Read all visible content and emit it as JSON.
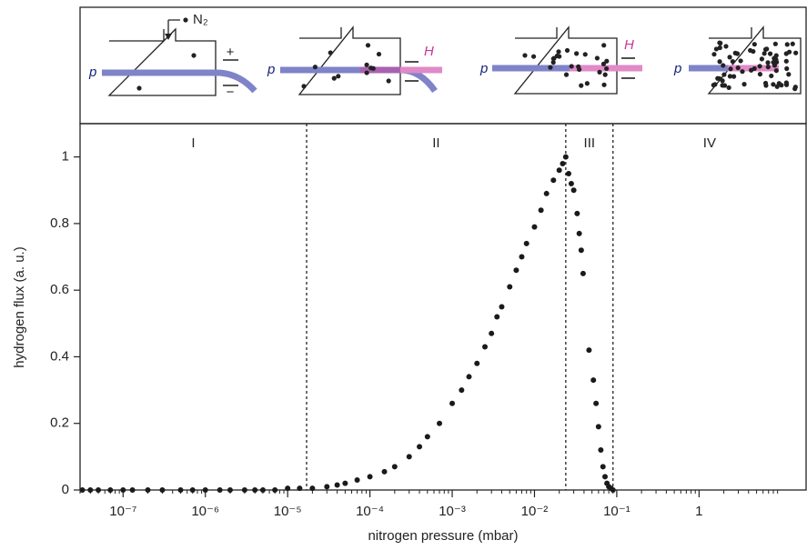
{
  "chart_data": {
    "type": "scatter",
    "xlabel": "nitrogen pressure (mbar)",
    "ylabel": "hydrogen flux (a. u.)",
    "xscale": "log",
    "xlim": [
      3e-08,
      20
    ],
    "ylim": [
      0,
      1.1
    ],
    "xticks": [
      {
        "value": 1e-07,
        "label": "10⁻⁷"
      },
      {
        "value": 1e-06,
        "label": "10⁻⁶"
      },
      {
        "value": 1e-05,
        "label": "10⁻⁵"
      },
      {
        "value": 0.0001,
        "label": "10⁻⁴"
      },
      {
        "value": 0.001,
        "label": "10⁻³"
      },
      {
        "value": 0.01,
        "label": "10⁻²"
      },
      {
        "value": 0.1,
        "label": "10⁻¹"
      },
      1
    ],
    "yticks": [
      0,
      0.2,
      0.4,
      0.6,
      0.8,
      1
    ],
    "color": "#1a1a1a",
    "region_labels": [
      "I",
      "II",
      "III",
      "IV"
    ],
    "region_boundaries": [
      1.7e-05,
      0.024,
      0.09
    ],
    "x": [
      3.2e-08,
      4e-08,
      5e-08,
      7e-08,
      1e-07,
      1.3e-07,
      2e-07,
      3e-07,
      5e-07,
      7e-07,
      1e-06,
      1.5e-06,
      2e-06,
      3e-06,
      4e-06,
      5e-06,
      7e-06,
      1e-05,
      1.4e-05,
      2e-05,
      3e-05,
      4e-05,
      5e-05,
      7e-05,
      0.0001,
      0.00015,
      0.0002,
      0.0003,
      0.0004,
      0.0005,
      0.0007,
      0.001,
      0.0013,
      0.0016,
      0.002,
      0.0025,
      0.003,
      0.0035,
      0.004,
      0.005,
      0.006,
      0.007,
      0.008,
      0.01,
      0.012,
      0.014,
      0.017,
      0.02,
      0.022,
      0.024,
      0.026,
      0.028,
      0.03,
      0.033,
      0.035,
      0.037,
      0.039,
      0.046,
      0.052,
      0.056,
      0.06,
      0.064,
      0.068,
      0.072,
      0.076,
      0.08,
      0.085,
      0.09
    ],
    "values": [
      0,
      0,
      0,
      0,
      0,
      0,
      0,
      0,
      0,
      0,
      0,
      0,
      0,
      0,
      0,
      0,
      0,
      0.005,
      0.005,
      0.005,
      0.01,
      0.015,
      0.02,
      0.03,
      0.04,
      0.055,
      0.07,
      0.1,
      0.13,
      0.16,
      0.2,
      0.26,
      0.3,
      0.34,
      0.38,
      0.43,
      0.47,
      0.52,
      0.55,
      0.61,
      0.66,
      0.7,
      0.74,
      0.79,
      0.84,
      0.89,
      0.93,
      0.96,
      0.98,
      1,
      0.95,
      0.92,
      0.9,
      0.83,
      0.77,
      0.72,
      0.65,
      0.42,
      0.33,
      0.26,
      0.19,
      0.12,
      0.07,
      0.04,
      0.02,
      0.01,
      0.005,
      0
    ]
  },
  "schematic": {
    "gas_label": "N₂",
    "proton_label": "p",
    "hydrogen_label": "H",
    "plus": "+",
    "minus": "−"
  }
}
